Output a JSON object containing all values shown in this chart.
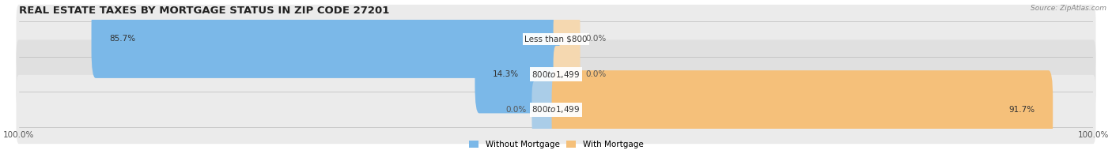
{
  "title": "REAL ESTATE TAXES BY MORTGAGE STATUS IN ZIP CODE 27201",
  "source": "Source: ZipAtlas.com",
  "categories": [
    "Less than $800",
    "$800 to $1,499",
    "$800 to $1,499"
  ],
  "without_mortgage": [
    85.7,
    14.3,
    0.0
  ],
  "with_mortgage": [
    0.0,
    0.0,
    91.7
  ],
  "blue_color": "#7BB8E8",
  "blue_stub_color": "#AACDE8",
  "orange_color": "#F5C07A",
  "orange_stub_color": "#F5D8B0",
  "row_bg_colors": [
    "#EBEBEB",
    "#E0E0E0",
    "#EBEBEB"
  ],
  "title_fontsize": 9.5,
  "label_fontsize": 7.5,
  "tick_fontsize": 7.5,
  "legend_fontsize": 7.5,
  "figsize": [
    14.06,
    1.95
  ],
  "dpi": 100
}
